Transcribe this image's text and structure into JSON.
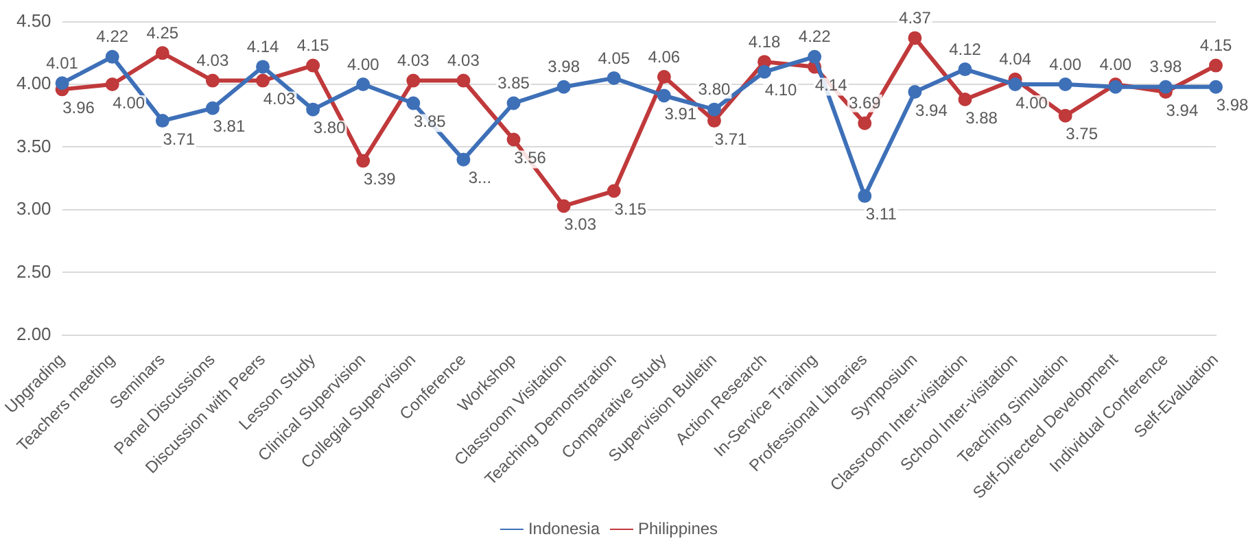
{
  "chart_data": {
    "type": "line",
    "categories": [
      "Upgrading",
      "Teachers meeting",
      "Seminars",
      "Panel Discussions",
      "Discussion with Peers",
      "Lesson Study",
      "Clinical Supervision",
      "Collegial Supervision",
      "Conference",
      "Workshop",
      "Classroom Visitation",
      "Teaching Demonstration",
      "Comparative Study",
      "Supervision Bulletin",
      "Action Research",
      "In-Service Training",
      "Professional Libraries",
      "Symposium",
      "Classroom Inter-visitation",
      "School Inter-visitation",
      "Teaching Simulation",
      "Self-Directed Development",
      "Individual Conference",
      "Self-Evaluation"
    ],
    "series": [
      {
        "name": "Indonesia",
        "color": "#3e70b8",
        "values": [
          4.01,
          4.22,
          3.71,
          3.81,
          4.14,
          3.8,
          4.0,
          3.85,
          3.4,
          3.85,
          3.98,
          4.05,
          3.91,
          3.8,
          4.1,
          4.22,
          3.11,
          3.94,
          4.12,
          4.0,
          4.0,
          3.98,
          3.98,
          3.98
        ],
        "value_labels": [
          "4.01",
          "4.22",
          "3.71",
          "3.81",
          "4.14",
          "3.80",
          "4.00",
          "3.85",
          "3...",
          "3.85",
          "3.98",
          "4.05",
          "3.91",
          "3.80",
          "4.10",
          "4.22",
          "3.11",
          "3.94",
          "4.12",
          "4.00",
          "4.00",
          null,
          "3.98",
          "3.98"
        ]
      },
      {
        "name": "Philippines",
        "color": "#c0393b",
        "values": [
          3.96,
          4.0,
          4.25,
          4.03,
          4.03,
          4.15,
          3.39,
          4.03,
          4.03,
          3.56,
          3.03,
          3.15,
          4.06,
          3.71,
          4.18,
          4.14,
          3.69,
          4.37,
          3.88,
          4.04,
          3.75,
          4.0,
          3.94,
          4.15
        ],
        "value_labels": [
          "3.96",
          "4.00",
          "4.25",
          "4.03",
          "4.03",
          "4.15",
          "3.39",
          "4.03",
          "4.03",
          "3.56",
          "3.03",
          "3.15",
          "4.06",
          "3.71",
          "4.18",
          "4.14",
          "3.69",
          "4.37",
          "3.88",
          "4.04",
          "3.75",
          "4.00",
          "3.94",
          "4.15"
        ]
      }
    ],
    "ylim": [
      2.0,
      4.5
    ],
    "yticks": [
      {
        "value": 2.0,
        "label": "2.00"
      },
      {
        "value": 2.5,
        "label": "2.50"
      },
      {
        "value": 3.0,
        "label": "3.00"
      },
      {
        "value": 3.5,
        "label": "3.50"
      },
      {
        "value": 4.0,
        "label": "4.00"
      },
      {
        "value": 4.5,
        "label": "4.50"
      }
    ],
    "grid": "y",
    "legend": "bottom",
    "marker": "circle",
    "line_style": "solid"
  }
}
